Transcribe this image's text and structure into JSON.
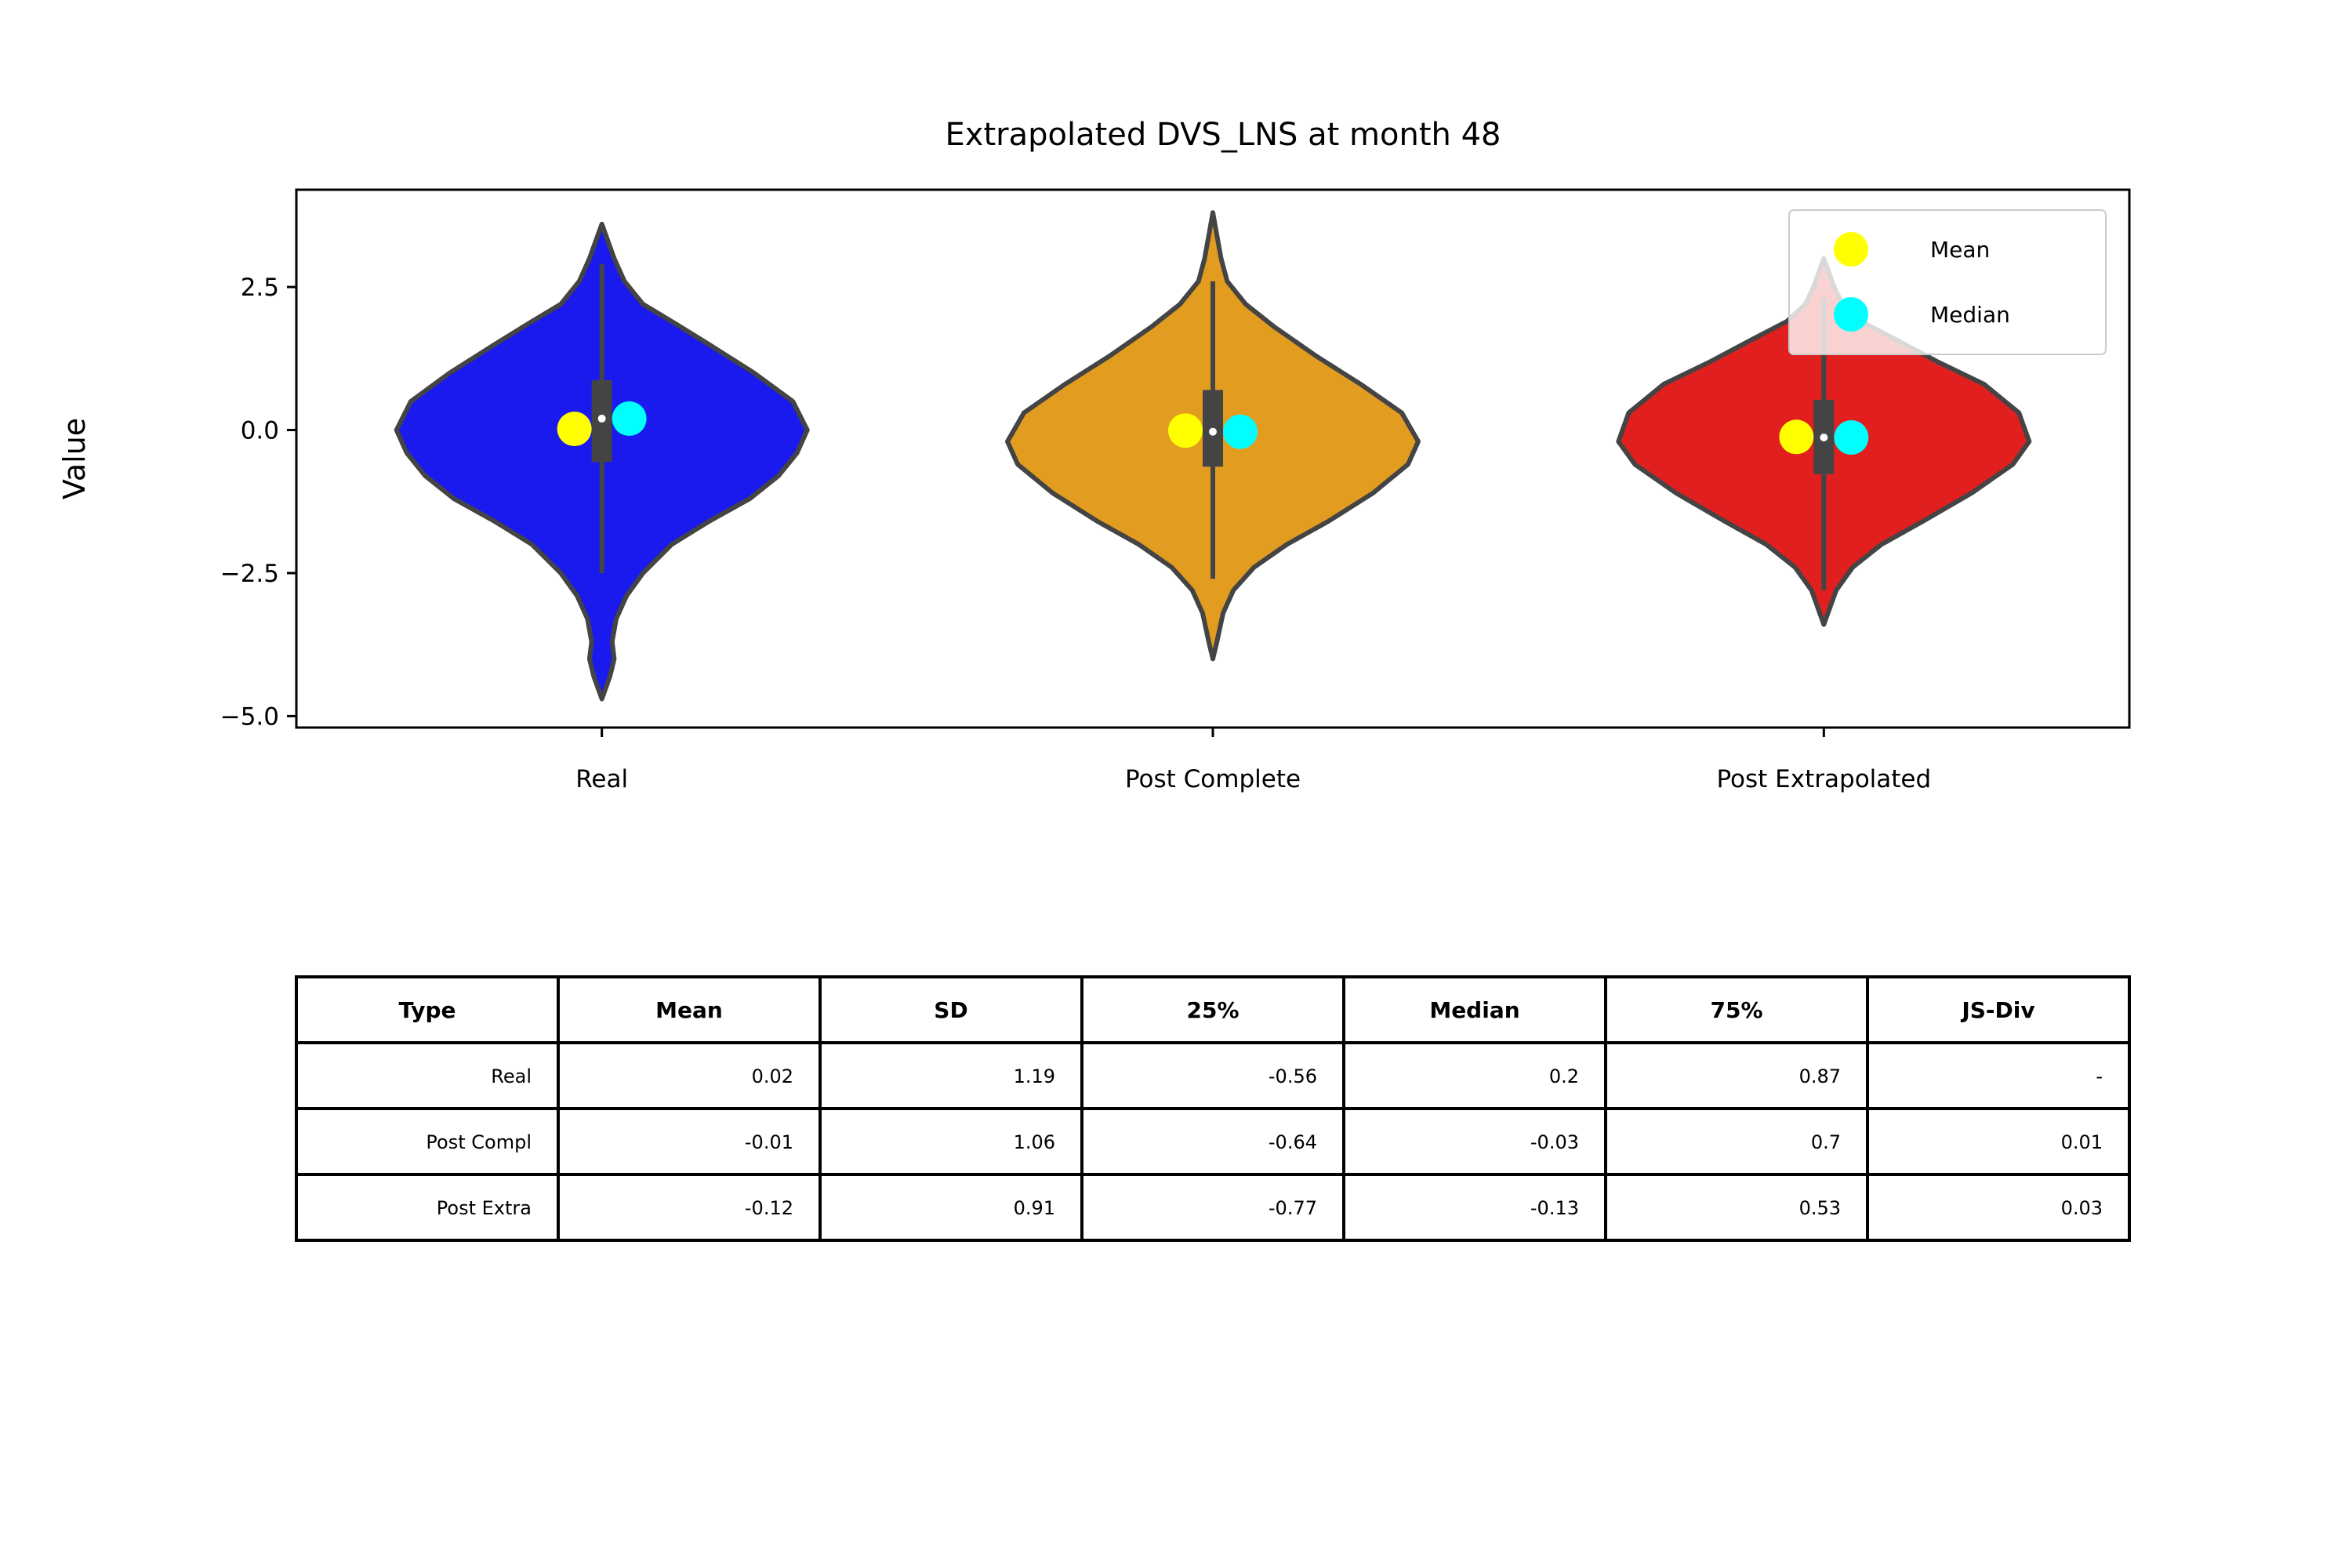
{
  "chart_data": {
    "type": "violin",
    "title": "Extrapolated DVS_LNS at month 48",
    "xlabel": "",
    "ylabel": "Value",
    "ylim": [
      -5.2,
      4.2
    ],
    "yticks": [
      2.5,
      0.0,
      -2.5,
      -5.0
    ],
    "ytick_labels": [
      "2.5",
      "0.0",
      "−2.5",
      "−5.0"
    ],
    "legend_position": "top-right",
    "legend": [
      {
        "label": "Mean",
        "color": "#ffff00"
      },
      {
        "label": "Median",
        "color": "#00ffff"
      }
    ],
    "series": [
      {
        "name": "Real",
        "color": "#1a1aee",
        "min": -4.7,
        "max": 3.6,
        "whisker": [
          -2.5,
          2.9
        ],
        "q1": -0.56,
        "median": 0.2,
        "q3": 0.87,
        "mean": 0.02,
        "density": [
          [
            -4.7,
            0.0
          ],
          [
            -4.3,
            0.04
          ],
          [
            -4.0,
            0.06
          ],
          [
            -3.7,
            0.05
          ],
          [
            -3.3,
            0.07
          ],
          [
            -2.9,
            0.12
          ],
          [
            -2.5,
            0.2
          ],
          [
            -2.0,
            0.34
          ],
          [
            -1.6,
            0.52
          ],
          [
            -1.2,
            0.72
          ],
          [
            -0.8,
            0.86
          ],
          [
            -0.4,
            0.95
          ],
          [
            0.0,
            1.0
          ],
          [
            0.5,
            0.93
          ],
          [
            1.0,
            0.74
          ],
          [
            1.5,
            0.52
          ],
          [
            1.9,
            0.34
          ],
          [
            2.2,
            0.2
          ],
          [
            2.6,
            0.11
          ],
          [
            3.0,
            0.06
          ],
          [
            3.3,
            0.03
          ],
          [
            3.6,
            0.0
          ]
        ]
      },
      {
        "name": "Post Complete",
        "color": "#e29d21",
        "min": -4.0,
        "max": 3.8,
        "whisker": [
          -2.6,
          2.6
        ],
        "q1": -0.64,
        "median": -0.03,
        "q3": 0.7,
        "mean": -0.01,
        "density": [
          [
            -4.0,
            0.0
          ],
          [
            -3.7,
            0.02
          ],
          [
            -3.2,
            0.05
          ],
          [
            -2.8,
            0.1
          ],
          [
            -2.4,
            0.2
          ],
          [
            -2.0,
            0.36
          ],
          [
            -1.6,
            0.56
          ],
          [
            -1.1,
            0.78
          ],
          [
            -0.6,
            0.95
          ],
          [
            -0.2,
            1.0
          ],
          [
            0.3,
            0.92
          ],
          [
            0.8,
            0.72
          ],
          [
            1.3,
            0.5
          ],
          [
            1.8,
            0.3
          ],
          [
            2.2,
            0.16
          ],
          [
            2.6,
            0.07
          ],
          [
            3.0,
            0.04
          ],
          [
            3.4,
            0.02
          ],
          [
            3.8,
            0.0
          ]
        ]
      },
      {
        "name": "Post Extrapolated",
        "color": "#e11f1f",
        "min": -3.4,
        "max": 3.0,
        "whisker": [
          -2.8,
          2.3
        ],
        "q1": -0.77,
        "median": -0.13,
        "q3": 0.53,
        "mean": -0.12,
        "density": [
          [
            -3.4,
            0.0
          ],
          [
            -3.1,
            0.03
          ],
          [
            -2.8,
            0.06
          ],
          [
            -2.4,
            0.14
          ],
          [
            -2.0,
            0.28
          ],
          [
            -1.6,
            0.48
          ],
          [
            -1.1,
            0.72
          ],
          [
            -0.6,
            0.92
          ],
          [
            -0.2,
            1.0
          ],
          [
            0.3,
            0.95
          ],
          [
            0.8,
            0.78
          ],
          [
            1.2,
            0.55
          ],
          [
            1.6,
            0.34
          ],
          [
            1.9,
            0.18
          ],
          [
            2.2,
            0.09
          ],
          [
            2.5,
            0.05
          ],
          [
            2.8,
            0.02
          ],
          [
            3.0,
            0.0
          ]
        ]
      }
    ]
  },
  "table": {
    "headers": [
      "Type",
      "Mean",
      "SD",
      "25%",
      "Median",
      "75%",
      "JS-Div"
    ],
    "rows": [
      [
        "Real",
        "0.02",
        "1.19",
        "-0.56",
        "0.2",
        "0.87",
        "-"
      ],
      [
        "Post Compl",
        "-0.01",
        "1.06",
        "-0.64",
        "-0.03",
        "0.7",
        "0.01"
      ],
      [
        "Post Extra",
        "-0.12",
        "0.91",
        "-0.77",
        "-0.13",
        "0.53",
        "0.03"
      ]
    ]
  }
}
